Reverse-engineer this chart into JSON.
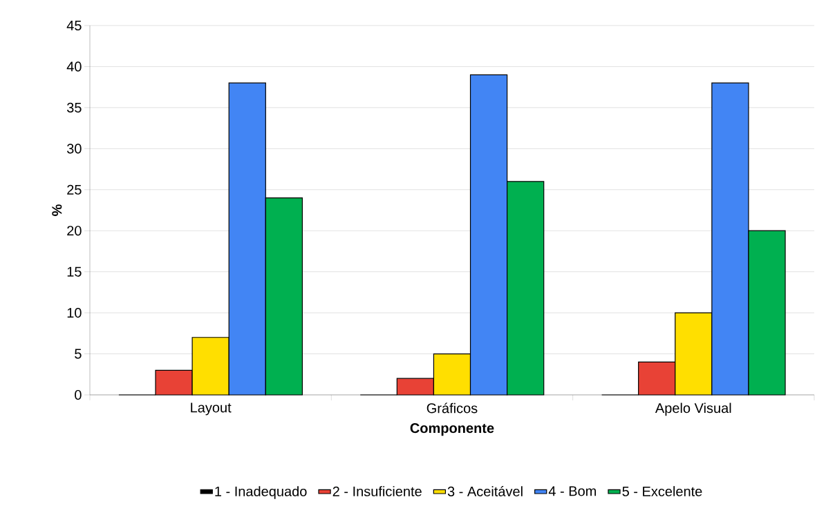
{
  "chart_data": {
    "type": "bar",
    "xlabel": "Componente",
    "ylabel": "%",
    "categories": [
      "Layout",
      "Gráficos",
      "Apelo Visual"
    ],
    "series": [
      {
        "name": "1 - Inadequado",
        "color": "#000000",
        "values": [
          0,
          0,
          0
        ]
      },
      {
        "name": "2 - Insuficiente",
        "color": "#e84236",
        "values": [
          3,
          2,
          4
        ]
      },
      {
        "name": "3 - Aceitável",
        "color": "#ffdf00",
        "values": [
          7,
          5,
          10
        ]
      },
      {
        "name": "4 - Bom",
        "color": "#4285f4",
        "values": [
          38,
          39,
          38
        ]
      },
      {
        "name": "5 - Excelente",
        "color": "#00b050",
        "values": [
          24,
          26,
          20
        ]
      }
    ],
    "ylim": [
      0,
      45
    ],
    "yticks": [
      0,
      5,
      10,
      15,
      20,
      25,
      30,
      35,
      40,
      45
    ],
    "grid": "y",
    "legend": "bottom"
  }
}
